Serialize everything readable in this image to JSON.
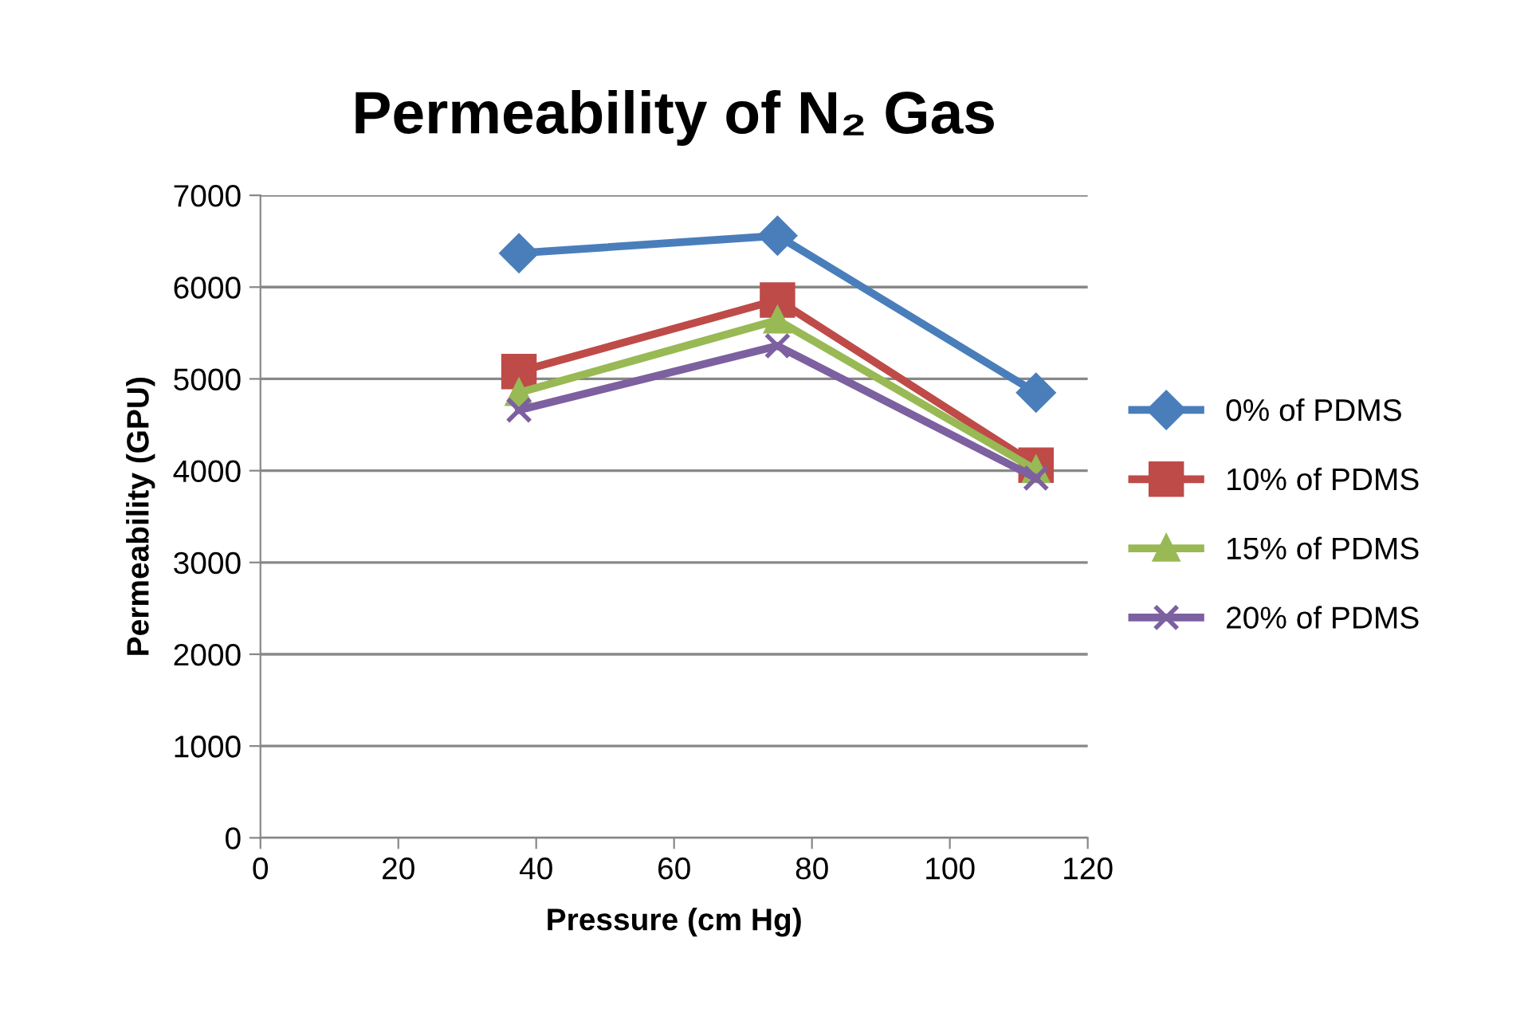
{
  "chart_data": {
    "type": "line",
    "title": "Permeability of N₂ Gas",
    "xlabel": "Pressure (cm Hg)",
    "ylabel": "Permeability (GPU)",
    "x": [
      37.5,
      75,
      112.5
    ],
    "series": [
      {
        "name": "0% of PDMS",
        "color": "#4a7ebb",
        "marker": "diamond",
        "values": [
          6370,
          6560,
          4850
        ]
      },
      {
        "name": "10% of PDMS",
        "color": "#be4b48",
        "marker": "square",
        "values": [
          5080,
          5860,
          4060
        ]
      },
      {
        "name": "15% of PDMS",
        "color": "#98b954",
        "marker": "triangle",
        "values": [
          4850,
          5640,
          4010
        ]
      },
      {
        "name": "20% of PDMS",
        "color": "#7d60a0",
        "marker": "cross",
        "values": [
          4660,
          5360,
          3920
        ]
      }
    ],
    "xlim": [
      0,
      120
    ],
    "xticks": [
      0,
      20,
      40,
      60,
      80,
      100,
      120
    ],
    "ylim": [
      0,
      7000
    ],
    "yticks": [
      0,
      1000,
      2000,
      3000,
      4000,
      5000,
      6000,
      7000
    ],
    "grid": "y",
    "legend": "right",
    "line_style": "solid"
  }
}
